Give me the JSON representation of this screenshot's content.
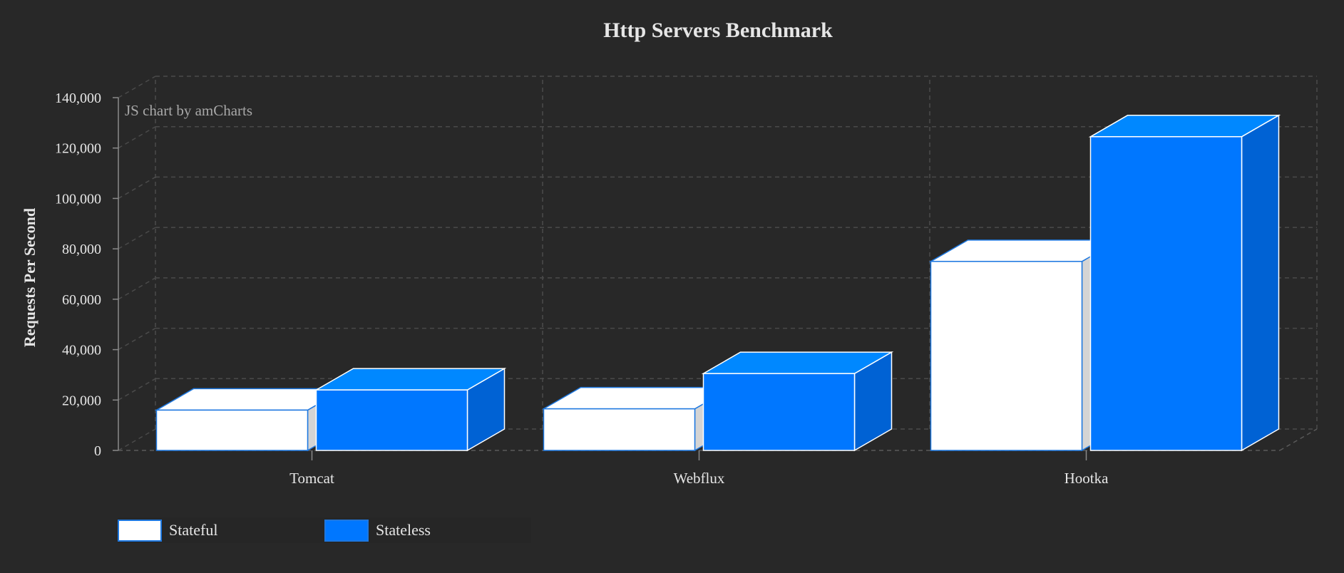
{
  "chart_data": {
    "type": "bar",
    "title": "Http Servers Benchmark",
    "credit": "JS chart by amCharts",
    "xlabel": "",
    "ylabel": "Requests Per Second",
    "categories": [
      "Tomcat",
      "Webflux",
      "Hootka"
    ],
    "series": [
      {
        "name": "Stateful",
        "values": [
          16000,
          16500,
          75000
        ],
        "color": "#ffffff"
      },
      {
        "name": "Stateless",
        "values": [
          24000,
          30500,
          124500
        ],
        "color": "#0077ff"
      }
    ],
    "ylim": [
      0,
      140000
    ],
    "yticks": [
      "0",
      "20,000",
      "40,000",
      "60,000",
      "80,000",
      "100,000",
      "120,000",
      "140,000"
    ],
    "grid": true,
    "legend": "bottom-left",
    "style": "3d-columns"
  }
}
